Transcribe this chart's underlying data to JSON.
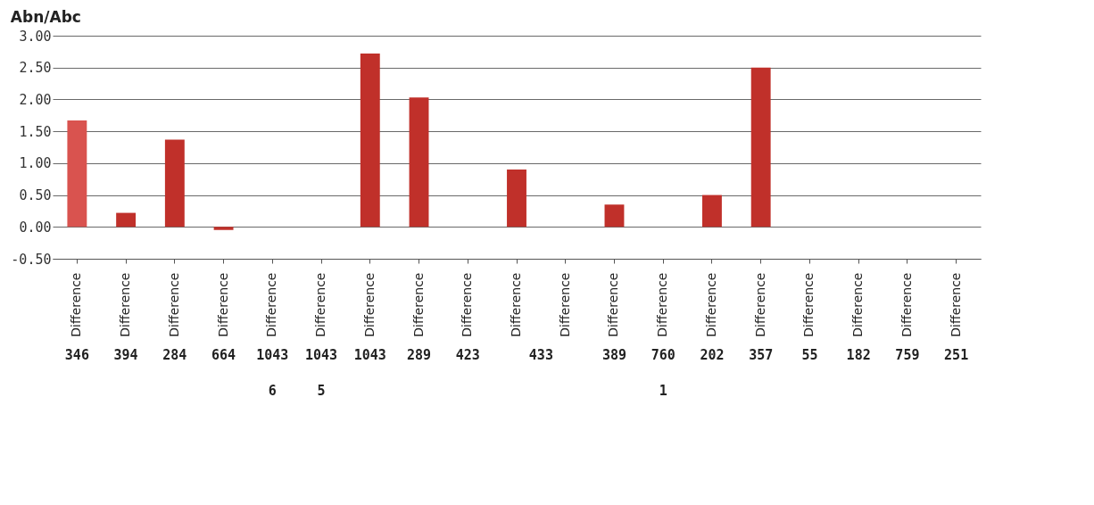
{
  "chart_data": {
    "type": "bar",
    "title": "Abn/Abc",
    "categories": [
      "Difference",
      "Difference",
      "Difference",
      "Difference",
      "Difference",
      "Difference",
      "Difference",
      "Difference",
      "Difference",
      "Difference",
      "Difference",
      "Difference",
      "Difference",
      "Difference",
      "Difference",
      "Difference",
      "Difference",
      "Difference",
      "Difference"
    ],
    "values": [
      1.67,
      0.22,
      1.37,
      -0.05,
      null,
      null,
      2.72,
      2.03,
      null,
      0.9,
      null,
      0.35,
      null,
      0.5,
      2.5,
      null,
      null,
      null,
      null
    ],
    "colors": [
      "#d9534f",
      "#c0302a",
      "#c0302a",
      "#c0302a",
      "#c0302a",
      "#c0302a",
      "#c0302a",
      "#c0302a",
      "#c0302a",
      "#c0302a",
      "#c0302a",
      "#c0302a",
      "#c0302a",
      "#c0302a",
      "#c0302a",
      "#c0302a",
      "#c0302a",
      "#c0302a",
      "#c0302a"
    ],
    "ylim": [
      -0.5,
      3
    ],
    "yticks": [
      {
        "value": -0.5,
        "label": "-0.50"
      },
      {
        "value": 0,
        "label": "0.00"
      },
      {
        "value": 0.5,
        "label": "0.50"
      },
      {
        "value": 1,
        "label": "1.00"
      },
      {
        "value": 1.5,
        "label": "1.50"
      },
      {
        "value": 2,
        "label": "2.00"
      },
      {
        "value": 2.5,
        "label": "2.50"
      },
      {
        "value": 3,
        "label": "3.00"
      }
    ],
    "grid": "y",
    "annotations": [
      "346",
      "394",
      "284",
      "664",
      "1043",
      "1043",
      "1043",
      "289",
      "423",
      "433",
      "389",
      "760",
      "202",
      "357",
      "55",
      "182",
      "759",
      "251",
      "6",
      "5",
      "1"
    ]
  }
}
